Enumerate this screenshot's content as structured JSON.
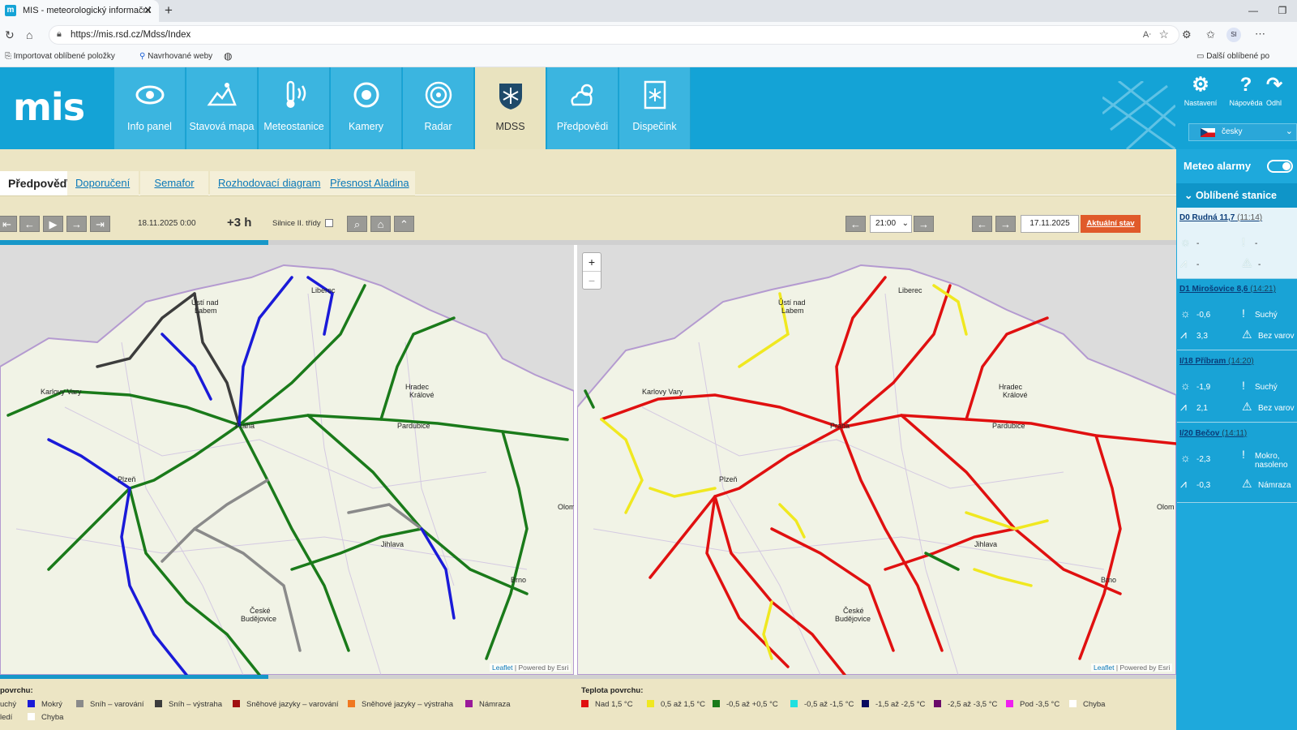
{
  "browser": {
    "tab_title": "MIS - meteorologický informační",
    "favicon": "m",
    "url": "https://mis.rsd.cz/Mdss/Index",
    "profile": "SI",
    "bookmarks": [
      "Importovat oblíbené položky",
      "Navrhované weby"
    ],
    "other_favorites": "Další oblíbené po"
  },
  "app": {
    "logo": "mis",
    "nav": [
      {
        "label": "Info panel",
        "icon": "eye-icon"
      },
      {
        "label": "Stavová mapa",
        "icon": "map-icon"
      },
      {
        "label": "Meteostanice",
        "icon": "thermometer-icon"
      },
      {
        "label": "Kamery",
        "icon": "camera-icon"
      },
      {
        "label": "Radar",
        "icon": "radar-icon"
      },
      {
        "label": "MDSS",
        "icon": "snowflake-shield-icon"
      },
      {
        "label": "Předpovědi",
        "icon": "cloud-sun-icon"
      },
      {
        "label": "Dispečink",
        "icon": "dispatch-icon"
      }
    ],
    "right_buttons": [
      {
        "label": "Nastavení",
        "icon": "gear-icon"
      },
      {
        "label": "Nápověda",
        "icon": "help-icon"
      },
      {
        "label": "Odhl",
        "icon": "logout-icon"
      }
    ],
    "language": "česky",
    "subtabs": [
      "Předpověď",
      "Doporučení",
      "Semafor",
      "Rozhodovací diagram",
      "Přesnost Aladina"
    ],
    "toolbar": {
      "date": "18.11.2025 0:00",
      "offset": "+3 h",
      "silnice": "Silnice II. třídy",
      "time_select": "21:00",
      "date_input": "17.11.2025",
      "current_state": "Aktuální stav"
    },
    "progress": {
      "top": 0.228,
      "bottom": 0.228
    }
  },
  "maps": {
    "attribution": [
      "Leaflet",
      "Powered by Esri"
    ],
    "zoom_in": "+",
    "zoom_out": "−",
    "cities": [
      "Ústí nad Labem",
      "Liberec",
      "Karlovy Vary",
      "Praha",
      "Hradec Králové",
      "Pardubice",
      "Plzeň",
      "Jihlava",
      "Brno",
      "České Budějovice",
      "Olomouc"
    ],
    "city_labels_left": {
      "usti": "Ústí nad",
      "usti2": "Labem",
      "liberec": "Liberec",
      "kv": "Karlovy Vary",
      "praha": "Praha",
      "hk": "Hradec",
      "hk2": "Králové",
      "pardubice": "Pardubice",
      "plzen": "Plzeň",
      "jihlava": "Jihlava",
      "brno": "Brno",
      "cb": "České",
      "cb2": "Budějovice",
      "olomouc": "Olom"
    }
  },
  "legend": {
    "left_title": "povrchu:",
    "left_items": [
      {
        "label": "uchý",
        "color": "#f0f0f0"
      },
      {
        "label": "Mokrý",
        "color": "#1a1ad8"
      },
      {
        "label": "Sníh – varování",
        "color": "#8a8a8a"
      },
      {
        "label": "Sníh – výstraha",
        "color": "#3c3c3c"
      },
      {
        "label": "Sněhové jazyky – varování",
        "color": "#a01010"
      },
      {
        "label": "Sněhové jazyky – výstraha",
        "color": "#f07820"
      },
      {
        "label": "Námraza",
        "color": "#9a1a9a"
      },
      {
        "label": "ledí",
        "color": "#e8e8e8"
      },
      {
        "label": "Chyba",
        "color": "#ffffff"
      }
    ],
    "right_title": "Teplota povrchu:",
    "right_items": [
      {
        "label": "Nad 1,5 °C",
        "color": "#e01010"
      },
      {
        "label": "0,5 až 1,5 °C",
        "color": "#f0e820"
      },
      {
        "label": "-0,5 až +0,5 °C",
        "color": "#1a7a1a"
      },
      {
        "label": "-0,5 až -1,5 °C",
        "color": "#20e0e0"
      },
      {
        "label": "-1,5 až -2,5 °C",
        "color": "#0a0a60"
      },
      {
        "label": "-2,5 až -3,5 °C",
        "color": "#6a0a6a"
      },
      {
        "label": "Pod -3,5 °C",
        "color": "#f020f0"
      },
      {
        "label": "Chyba",
        "color": "#ffffff"
      }
    ]
  },
  "side_panel": {
    "meteo_alarmy": "Meteo alarmy",
    "favorites_title": "Oblíbené stanice",
    "stations": [
      {
        "name": "D0 Rudná 11,7",
        "time": "(11:14)",
        "air_temp": "-",
        "condition": "-",
        "road_temp": "-",
        "warning": "-"
      },
      {
        "name": "D1 Mirošovice 8,6",
        "time": "(14:21)",
        "air_temp": "-0,6",
        "condition": "Suchý",
        "road_temp": "3,3",
        "warning": "Bez varov"
      },
      {
        "name": "I/18 Příbram",
        "time": "(14:20)",
        "air_temp": "-1,9",
        "condition": "Suchý",
        "road_temp": "2,1",
        "warning": "Bez varov"
      },
      {
        "name": "I/20 Bečov",
        "time": "(14:11)",
        "air_temp": "-2,3",
        "condition": "Mokro,",
        "condition2": "nasoleno",
        "road_temp": "-0,3",
        "warning": "Námraza"
      }
    ]
  }
}
